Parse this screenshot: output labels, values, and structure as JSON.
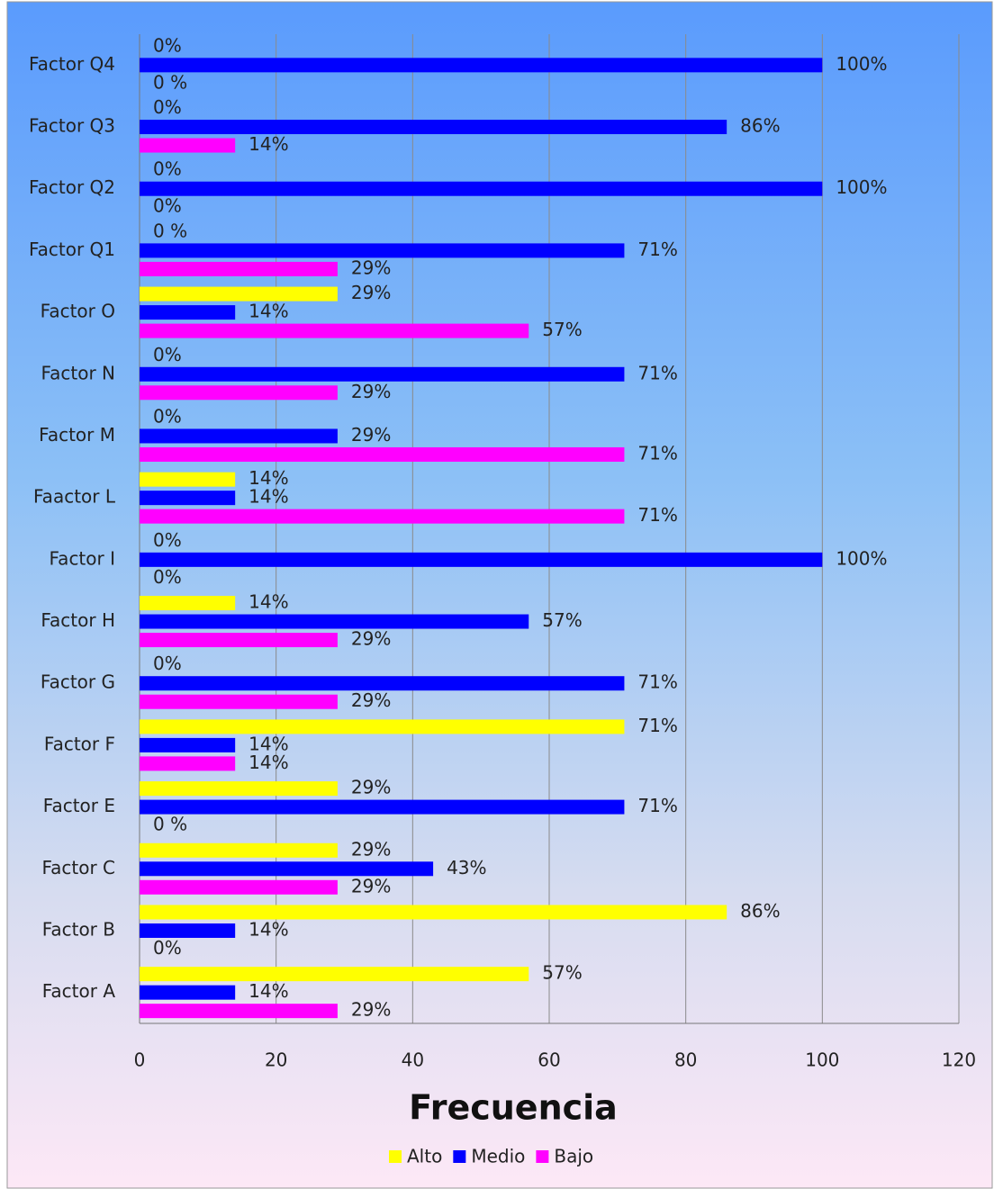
{
  "chart_data": {
    "type": "bar",
    "orientation": "horizontal",
    "x_label": "Frecuencia",
    "categories": [
      "Factor A",
      "Factor B",
      "Factor C",
      "Factor E",
      "Factor F",
      "Factor G",
      "Factor H",
      "Factor I",
      "Faactor L",
      "Factor M",
      "Factor N",
      "Factor O",
      "Factor Q1",
      "Factor Q2",
      "Factor Q3",
      "Factor Q4"
    ],
    "series": [
      {
        "name": "Alto",
        "color": "#ffff00",
        "values": [
          57,
          86,
          29,
          29,
          71,
          0,
          14,
          0,
          14,
          0,
          0,
          29,
          0,
          0,
          0,
          0
        ],
        "value_labels": [
          "57%",
          "86%",
          "29%",
          "29%",
          "71%",
          "0%",
          "14%",
          "0%",
          "14%",
          "0%",
          "0%",
          "29%",
          "0 %",
          "0%",
          "0%",
          "0%"
        ]
      },
      {
        "name": "Medio",
        "color": "#0000ff",
        "values": [
          14,
          14,
          43,
          71,
          14,
          71,
          57,
          100,
          14,
          29,
          71,
          14,
          71,
          100,
          86,
          100
        ],
        "value_labels": [
          "14%",
          "14%",
          "43%",
          "71%",
          "14%",
          "71%",
          "57%",
          "100%",
          "14%",
          "29%",
          "71%",
          "14%",
          "71%",
          "100%",
          "86%",
          "100%"
        ]
      },
      {
        "name": "Bajo",
        "color": "#ff00ff",
        "values": [
          29,
          0,
          29,
          0,
          14,
          29,
          29,
          0,
          71,
          71,
          29,
          57,
          29,
          0,
          14,
          0
        ],
        "value_labels": [
          "29%",
          "0%",
          "29%",
          "0 %",
          "14%",
          "29%",
          "29%",
          "0%",
          "71%",
          "71%",
          "29%",
          "57%",
          "29%",
          "0%",
          "14%",
          "0 %"
        ]
      }
    ],
    "xlim": [
      0,
      120
    ],
    "xticks": [
      0,
      20,
      40,
      60,
      80,
      100,
      120
    ],
    "grid": true,
    "legend": "bottom"
  }
}
